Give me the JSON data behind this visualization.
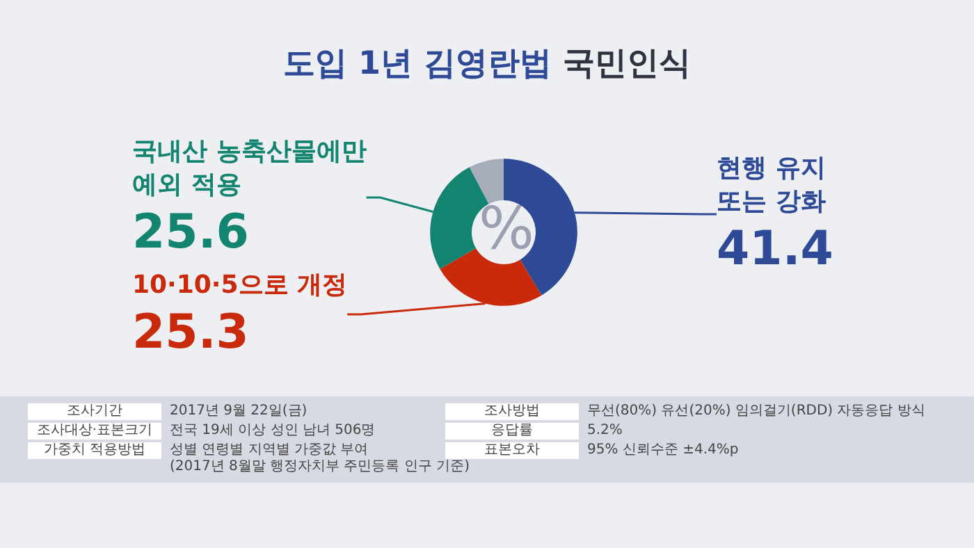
{
  "chart_data": {
    "type": "donut",
    "title": "도입 1년 김영란법 국민인식",
    "categories": [
      "현행 유지\n또는 강화",
      "10·10·5으로 개정",
      "국내산 농축산물에만\n예외 적용",
      null
    ],
    "values": [
      41.4,
      25.3,
      25.6,
      7.7
    ],
    "colors": [
      "#2e4a96",
      "#c92a0c",
      "#12846f",
      "#a7acbb"
    ],
    "value_labels": [
      "41.4",
      "25.3",
      "25.6",
      null
    ],
    "legend": false,
    "annotations": [
      "%",
      "조사기간",
      "2017년 9월 22일(금)",
      "조사대상·표본크기",
      "전국 19세 이상 성인 남녀 506명",
      "가중치 적용방법",
      "성별 연령별 지역별 가중값 부여\n(2017년 8월말 행정자치부 주민등록 인구 기준)",
      "조사방법",
      "무선(80%) 유선(20%) 임의걸기(RDD) 자동응답 방식",
      "응답률",
      "5.2%",
      "표본오차",
      "95% 신뢰수준 ±4.4%p"
    ]
  }
}
